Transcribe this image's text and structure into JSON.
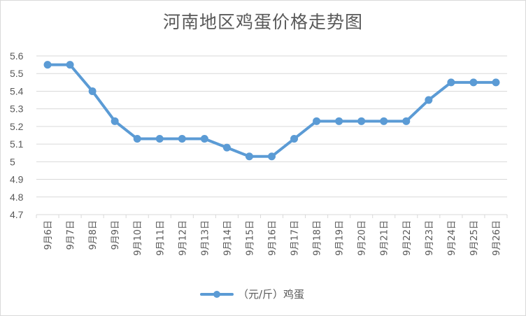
{
  "chart_data": {
    "type": "line",
    "title": "河南地区鸡蛋价格走势图",
    "categories": [
      "9月6日",
      "9月7日",
      "9月8日",
      "9月9日",
      "9月10日",
      "9月11日",
      "9月12日",
      "9月13日",
      "9月14日",
      "9月15日",
      "9月16日",
      "9月17日",
      "9月18日",
      "9月19日",
      "9月20日",
      "9月21日",
      "9月22日",
      "9月23日",
      "9月24日",
      "9月25日",
      "9月26日"
    ],
    "series": [
      {
        "name": "（元/斤）鸡蛋",
        "values": [
          5.55,
          5.55,
          5.4,
          5.23,
          5.13,
          5.13,
          5.13,
          5.13,
          5.08,
          5.03,
          5.03,
          5.13,
          5.23,
          5.23,
          5.23,
          5.23,
          5.23,
          5.35,
          5.45,
          5.45,
          5.45
        ],
        "color": "#5b9bd5"
      }
    ],
    "y_ticks": [
      "4.7",
      "4.8",
      "4.9",
      "5",
      "5.1",
      "5.2",
      "5.3",
      "5.4",
      "5.5",
      "5.6"
    ],
    "ylim": [
      4.7,
      5.6
    ],
    "grid": true,
    "legend_position": "bottom"
  }
}
